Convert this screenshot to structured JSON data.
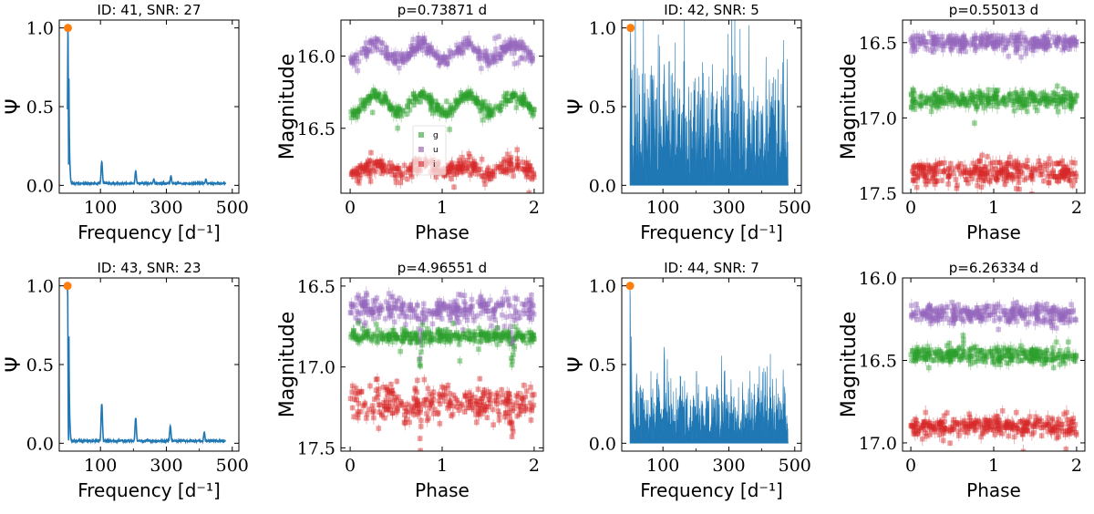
{
  "colors": {
    "periodogram": "#1f77b4",
    "peak_marker": "#ff7f0e",
    "g_band": "#2ca02c",
    "u_band": "#9467bd",
    "i_band": "#d62728",
    "axes": "#000000"
  },
  "chart_data": [
    {
      "type": "line",
      "panel": "periodogram",
      "title": "ID: 41, SNR: 27",
      "xlabel": "Frequency [d⁻¹]",
      "ylabel": "Ψ",
      "xlim": [
        -25,
        520
      ],
      "ylim": [
        -0.05,
        1.05
      ],
      "xticks": [
        100,
        300,
        500
      ],
      "yticks": [
        0.0,
        0.5,
        1.0
      ],
      "ytick_labels": [
        "0.0",
        "0.5",
        "1.0"
      ],
      "noise_level": 0.012,
      "harmonics": [
        {
          "x": 104,
          "y": 0.15
        },
        {
          "x": 207,
          "y": 0.09
        },
        {
          "x": 262,
          "y": 0.04
        },
        {
          "x": 314,
          "y": 0.06
        },
        {
          "x": 420,
          "y": 0.04
        }
      ],
      "peak": {
        "x": 1.35,
        "y": 1.0
      },
      "fill": false
    },
    {
      "type": "scatter",
      "panel": "lightcurve",
      "title": "p=0.73871 d",
      "xlabel": "Phase",
      "ylabel": "Magnitude",
      "xlim": [
        -0.1,
        2.1
      ],
      "ylim": [
        16.95,
        15.75
      ],
      "invert_y": true,
      "xticks": [
        0,
        1,
        2
      ],
      "yticks": [
        16.0,
        16.5
      ],
      "ytick_labels": [
        "16.0",
        "16.5"
      ],
      "legend": {
        "placement": "center",
        "labels": [
          "g",
          "u",
          "i"
        ]
      },
      "series": [
        {
          "band": "u",
          "mean": 15.97,
          "amplitude": 0.05,
          "shape": "double",
          "scatter": 0.025
        },
        {
          "band": "g",
          "mean": 16.33,
          "amplitude": 0.06,
          "shape": "double",
          "scatter": 0.02
        },
        {
          "band": "i",
          "mean": 16.78,
          "amplitude": 0.03,
          "shape": "double",
          "scatter": 0.03
        }
      ]
    },
    {
      "type": "line",
      "panel": "periodogram",
      "title": "ID: 42, SNR: 5",
      "xlabel": "Frequency [d⁻¹]",
      "ylabel": "Ψ",
      "xlim": [
        -25,
        520
      ],
      "ylim": [
        -0.05,
        1.05
      ],
      "xticks": [
        100,
        300,
        500
      ],
      "yticks": [
        0.0,
        0.5,
        1.0
      ],
      "ytick_labels": [
        "0.0",
        "0.5",
        "1.0"
      ],
      "noise_level": 0.32,
      "harmonics": [
        {
          "x": 104,
          "y": 0.78
        },
        {
          "x": 60,
          "y": 0.5
        },
        {
          "x": 150,
          "y": 0.55
        },
        {
          "x": 210,
          "y": 0.52
        },
        {
          "x": 360,
          "y": 0.58
        },
        {
          "x": 452,
          "y": 0.55
        }
      ],
      "peak": {
        "x": 1.8,
        "y": 1.0
      },
      "fill": true
    },
    {
      "type": "scatter",
      "panel": "lightcurve",
      "title": "p=0.55013 d",
      "xlabel": "Phase",
      "ylabel": "Magnitude",
      "xlim": [
        -0.1,
        2.1
      ],
      "ylim": [
        17.5,
        16.35
      ],
      "invert_y": true,
      "xticks": [
        0,
        1,
        2
      ],
      "yticks": [
        16.5,
        17.0,
        17.5
      ],
      "ytick_labels": [
        "16.5",
        "17.0",
        "17.5"
      ],
      "series": [
        {
          "band": "u",
          "mean": 16.5,
          "amplitude": 0.0,
          "shape": "flat",
          "scatter": 0.03
        },
        {
          "band": "g",
          "mean": 16.88,
          "amplitude": 0.0,
          "shape": "flat",
          "scatter": 0.03
        },
        {
          "band": "i",
          "mean": 17.36,
          "amplitude": 0.0,
          "shape": "flat",
          "scatter": 0.04
        }
      ]
    },
    {
      "type": "line",
      "panel": "periodogram",
      "title": "ID: 43, SNR: 23",
      "xlabel": "Frequency [d⁻¹]",
      "ylabel": "Ψ",
      "xlim": [
        -25,
        520
      ],
      "ylim": [
        -0.05,
        1.05
      ],
      "xticks": [
        100,
        300,
        500
      ],
      "yticks": [
        0.0,
        0.5,
        1.0
      ],
      "ytick_labels": [
        "0.0",
        "0.5",
        "1.0"
      ],
      "noise_level": 0.015,
      "harmonics": [
        {
          "x": 104,
          "y": 0.25
        },
        {
          "x": 207,
          "y": 0.16
        },
        {
          "x": 312,
          "y": 0.11
        },
        {
          "x": 415,
          "y": 0.07
        }
      ],
      "peak": {
        "x": 0.2,
        "y": 1.0
      },
      "fill": false
    },
    {
      "type": "scatter",
      "panel": "lightcurve",
      "title": "p=4.96551 d",
      "xlabel": "Phase",
      "ylabel": "Magnitude",
      "xlim": [
        -0.1,
        2.1
      ],
      "ylim": [
        17.52,
        16.45
      ],
      "invert_y": true,
      "xticks": [
        0,
        1,
        2
      ],
      "yticks": [
        16.5,
        17.0,
        17.5
      ],
      "ytick_labels": [
        "16.5",
        "17.0",
        "17.5"
      ],
      "series": [
        {
          "band": "u",
          "mean": 16.64,
          "amplitude": 0.0,
          "shape": "eclipse",
          "scatter": 0.04,
          "eclipse_depth": 0.25
        },
        {
          "band": "g",
          "mean": 16.81,
          "amplitude": 0.0,
          "shape": "eclipse",
          "scatter": 0.02,
          "eclipse_depth": 0.18
        },
        {
          "band": "i",
          "mean": 17.22,
          "amplitude": 0.0,
          "shape": "eclipse",
          "scatter": 0.06,
          "eclipse_depth": 0.15
        }
      ]
    },
    {
      "type": "line",
      "panel": "periodogram",
      "title": "ID: 44, SNR: 7",
      "xlabel": "Frequency [d⁻¹]",
      "ylabel": "Ψ",
      "xlim": [
        -25,
        520
      ],
      "ylim": [
        -0.05,
        1.05
      ],
      "xticks": [
        100,
        300,
        500
      ],
      "yticks": [
        0.0,
        0.5,
        1.0
      ],
      "ytick_labels": [
        "0.0",
        "0.5",
        "1.0"
      ],
      "noise_level": 0.18,
      "harmonics": [
        {
          "x": 104,
          "y": 0.62
        },
        {
          "x": 20,
          "y": 0.45
        },
        {
          "x": 150,
          "y": 0.3
        }
      ],
      "peak": {
        "x": 0.2,
        "y": 1.0
      },
      "fill": true
    },
    {
      "type": "scatter",
      "panel": "lightcurve",
      "title": "p=6.26334 d",
      "xlabel": "Phase",
      "ylabel": "Magnitude",
      "xlim": [
        -0.1,
        2.1
      ],
      "ylim": [
        17.05,
        16.0
      ],
      "invert_y": true,
      "xticks": [
        0,
        1,
        2
      ],
      "yticks": [
        16.0,
        16.5,
        17.0
      ],
      "ytick_labels": [
        "16.0",
        "16.5",
        "17.0"
      ],
      "series": [
        {
          "band": "u",
          "mean": 16.22,
          "amplitude": 0.0,
          "shape": "flat",
          "scatter": 0.03
        },
        {
          "band": "g",
          "mean": 16.47,
          "amplitude": 0.0,
          "shape": "flat",
          "scatter": 0.025
        },
        {
          "band": "i",
          "mean": 16.9,
          "amplitude": 0.0,
          "shape": "flat",
          "scatter": 0.03
        }
      ]
    }
  ]
}
